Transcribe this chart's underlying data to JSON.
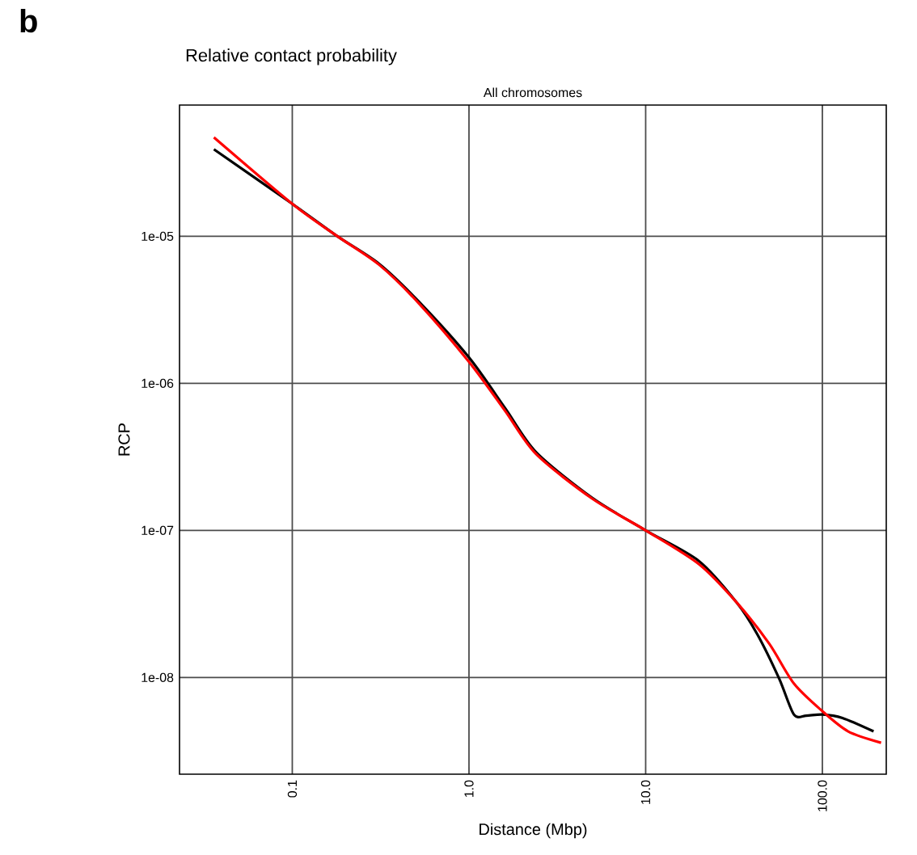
{
  "chart_data": {
    "type": "line",
    "title": "Relative contact probability",
    "subtitle": "All chromosomes",
    "xlabel": "Distance (Mbp)",
    "ylabel": "RCP",
    "annotations": [
      "b"
    ],
    "log": "xy",
    "grid": true,
    "line_style": "solid",
    "xlim": [
      0.023,
      230
    ],
    "ylim": [
      2.2e-09,
      7.8e-05
    ],
    "xticks": [
      {
        "value": 0.1,
        "label": "0.1"
      },
      {
        "value": 1,
        "label": "1.0"
      },
      {
        "value": 10,
        "label": "10.0"
      },
      {
        "value": 100,
        "label": "100.0"
      }
    ],
    "yticks": [
      {
        "value": 1e-08,
        "label": "1e-08"
      },
      {
        "value": 1e-07,
        "label": "1e-07"
      },
      {
        "value": 1e-06,
        "label": "1e-06"
      },
      {
        "value": 1e-05,
        "label": "1e-05"
      }
    ],
    "series": [
      {
        "color": "#000000",
        "x": [
          0.036,
          0.1,
          0.18,
          0.31,
          0.52,
          1.0,
          1.6,
          2.4,
          5,
          10,
          20,
          33,
          43,
          57,
          69,
          81,
          100,
          130,
          195
        ],
        "values": [
          3.9e-05,
          1.66e-05,
          1e-05,
          6.5e-06,
          3.6e-06,
          1.5e-06,
          6.8e-07,
          3.4e-07,
          1.66e-07,
          1e-07,
          6.2e-08,
          3.2e-08,
          1.95e-08,
          9.8e-09,
          5.6e-09,
          5.5e-09,
          5.6e-09,
          5.3e-09,
          4.3e-09
        ]
      },
      {
        "color": "#ff0000",
        "x": [
          0.036,
          0.1,
          0.18,
          0.31,
          0.52,
          1.0,
          1.6,
          2.4,
          5,
          10,
          20,
          33,
          50,
          69,
          100,
          140,
          215
        ],
        "values": [
          4.7e-05,
          1.66e-05,
          1e-05,
          6.4e-06,
          3.5e-06,
          1.4e-06,
          6.5e-07,
          3.3e-07,
          1.64e-07,
          1e-07,
          5.9e-08,
          3.2e-08,
          1.7e-08,
          9.1e-09,
          5.9e-09,
          4.3e-09,
          3.6e-09
        ]
      }
    ]
  }
}
